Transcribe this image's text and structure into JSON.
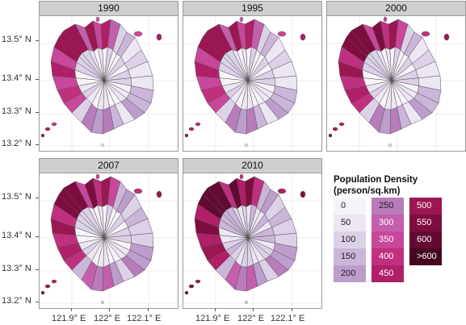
{
  "panels": [
    {
      "year": "1990"
    },
    {
      "year": "1995"
    },
    {
      "year": "2000"
    },
    {
      "year": "2007"
    },
    {
      "year": "2010"
    }
  ],
  "y_axis_labels": [
    "13.5° N",
    "13.4° N",
    "13.3° N",
    "13.2° N"
  ],
  "x_axis_labels": [
    "121.9° E",
    "122° E",
    "122.1° E"
  ],
  "legend": {
    "title_line1": "Population Density",
    "title_line2": "(person/sq.km)",
    "classes": [
      {
        "label": "0",
        "color": "#f7f4f9"
      },
      {
        "label": "50",
        "color": "#ece7f2"
      },
      {
        "label": "100",
        "color": "#ddd1e8"
      },
      {
        "label": "150",
        "color": "#cbb6da"
      },
      {
        "label": "200",
        "color": "#bd9dcc"
      },
      {
        "label": "250",
        "color": "#b97cbb"
      },
      {
        "label": "300",
        "color": "#c45fae"
      },
      {
        "label": "350",
        "color": "#c8479b"
      },
      {
        "label": "400",
        "color": "#c0307f"
      },
      {
        "label": "450",
        "color": "#b01f68"
      },
      {
        "label": "500",
        "color": "#9c1652"
      },
      {
        "label": "550",
        "color": "#7e0d3f"
      },
      {
        "label": "600",
        "color": "#630a32"
      },
      {
        "label": ">600",
        "color": "#470620"
      }
    ]
  }
}
